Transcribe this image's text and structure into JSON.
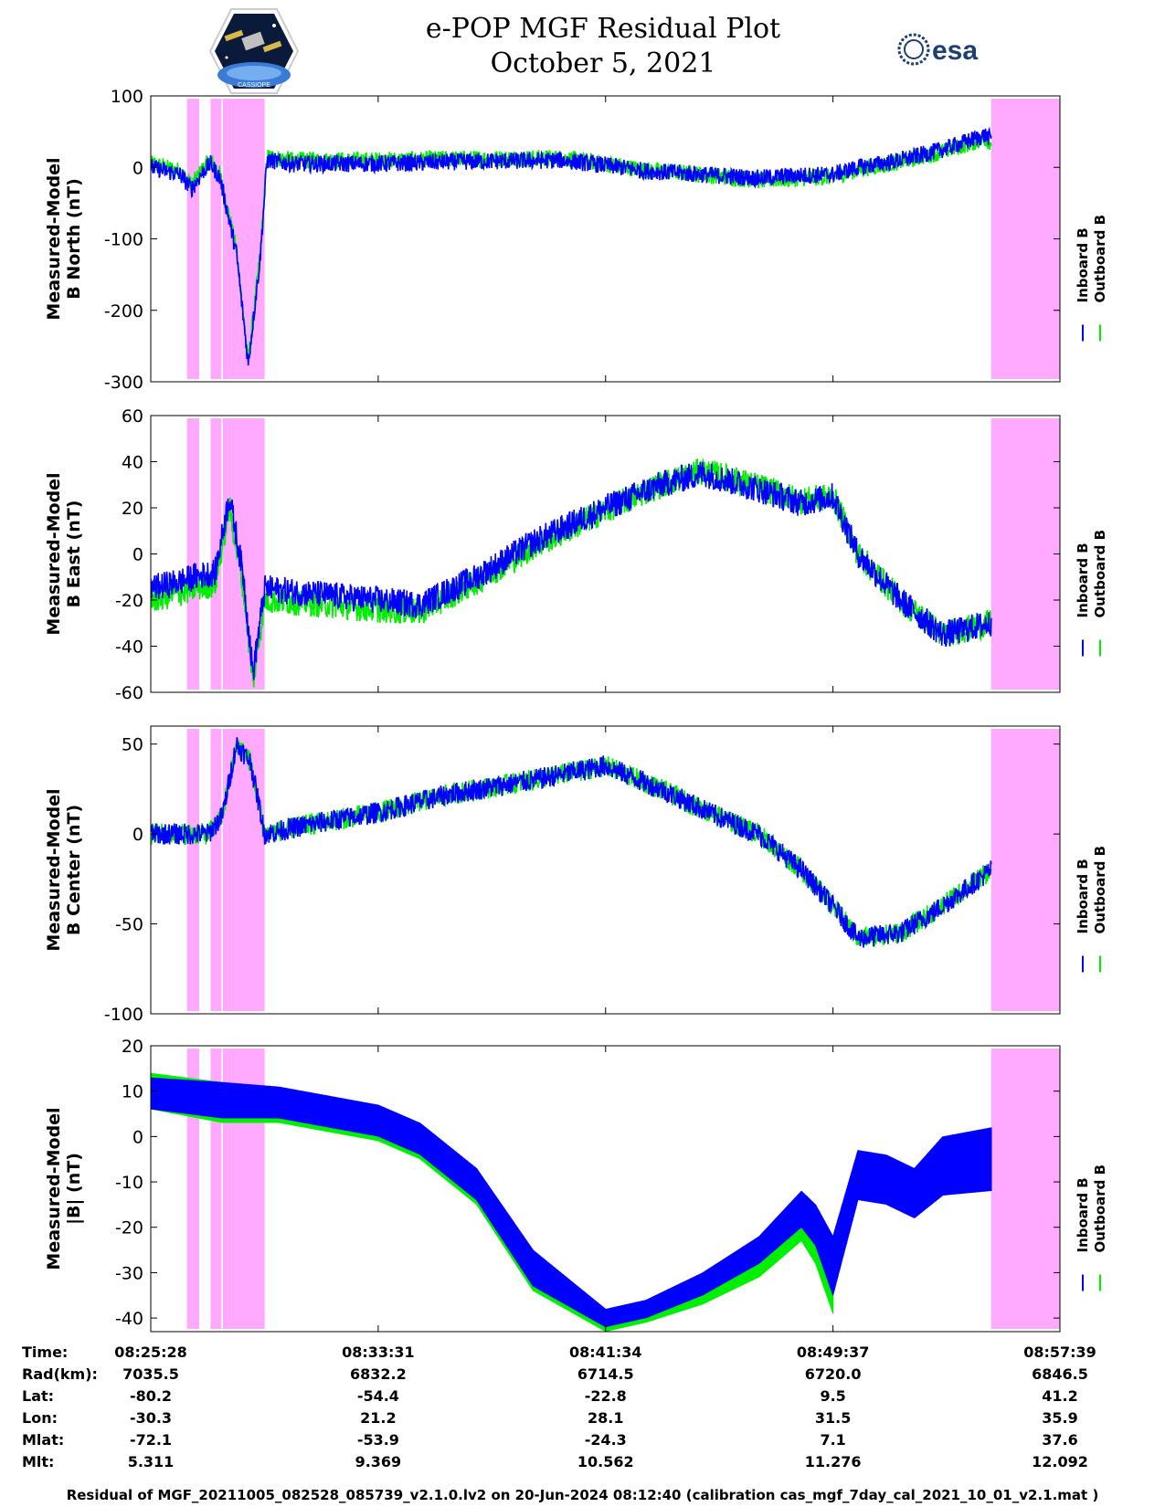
{
  "title": "e-POP MGF Residual Plot",
  "subtitle": "October 5, 2021",
  "logos": {
    "left": "cassiope-mission-patch",
    "left_caption": "CASSIOPE",
    "right": "esa"
  },
  "colors": {
    "inboard": "#0000ff",
    "outboard": "#00ee00",
    "shade": "#ffaaff"
  },
  "legend": {
    "inboard": "Inboard B",
    "outboard": "Outboard B"
  },
  "time_axis": {
    "start": "08:25:28",
    "end": "08:57:39",
    "ticks": [
      "08:25:28",
      "08:33:31",
      "08:41:34",
      "08:49:37",
      "08:57:39"
    ],
    "data_end_time": "08:55:13",
    "shaded_intervals": [
      [
        "08:26:45",
        "08:27:11"
      ],
      [
        "08:27:35",
        "08:27:58"
      ],
      [
        "08:28:01",
        "08:29:30"
      ],
      [
        "08:55:13",
        "08:57:39"
      ]
    ]
  },
  "chart_data": [
    {
      "type": "line",
      "ylabel": [
        "Measured-Model",
        "B North (nT)"
      ],
      "ylim": [
        -300,
        100
      ],
      "yticks": [
        100,
        0,
        -100,
        -200,
        -300
      ],
      "noise": 12,
      "series": [
        {
          "name": "Inboard B",
          "x": [
            "08:25:28",
            "08:26:30",
            "08:26:55",
            "08:27:20",
            "08:27:35",
            "08:27:55",
            "08:28:30",
            "08:28:55",
            "08:29:20",
            "08:29:35",
            "08:30:30",
            "08:33:31",
            "08:36:30",
            "08:40:00",
            "08:41:34",
            "08:43:00",
            "08:45:00",
            "08:47:00",
            "08:48:00",
            "08:49:37",
            "08:50:30",
            "08:52:00",
            "08:53:30",
            "08:55:00",
            "08:55:13"
          ],
          "y": [
            0,
            -10,
            -30,
            -5,
            5,
            -15,
            -120,
            -275,
            -130,
            10,
            5,
            5,
            8,
            10,
            3,
            -5,
            -10,
            -15,
            -12,
            -10,
            0,
            10,
            25,
            45,
            40
          ]
        },
        {
          "name": "Outboard B",
          "x": [
            "08:25:28",
            "08:26:30",
            "08:26:55",
            "08:27:20",
            "08:27:35",
            "08:27:55",
            "08:28:30",
            "08:28:55",
            "08:29:20",
            "08:29:35",
            "08:30:30",
            "08:33:31",
            "08:36:30",
            "08:40:00",
            "08:41:34",
            "08:43:00",
            "08:45:00",
            "08:47:00",
            "08:48:00",
            "08:49:37",
            "08:50:30",
            "08:52:00",
            "08:53:30",
            "08:55:00",
            "08:55:13"
          ],
          "y": [
            5,
            -5,
            -25,
            0,
            10,
            -10,
            -115,
            -270,
            -125,
            15,
            10,
            10,
            12,
            13,
            5,
            -4,
            -10,
            -18,
            -16,
            -13,
            -3,
            8,
            22,
            40,
            35
          ]
        }
      ]
    },
    {
      "type": "line",
      "ylabel": [
        "Measured-Model",
        "B East (nT)"
      ],
      "ylim": [
        -60,
        60
      ],
      "yticks": [
        60,
        40,
        20,
        0,
        -20,
        -40,
        -60
      ],
      "noise": 6,
      "series": [
        {
          "name": "Inboard B",
          "x": [
            "08:25:28",
            "08:26:30",
            "08:27:00",
            "08:27:45",
            "08:28:15",
            "08:28:45",
            "08:29:05",
            "08:29:30",
            "08:31:00",
            "08:33:31",
            "08:35:00",
            "08:37:00",
            "08:39:00",
            "08:41:34",
            "08:43:30",
            "08:45:00",
            "08:47:00",
            "08:48:30",
            "08:49:37",
            "08:50:30",
            "08:52:00",
            "08:53:30",
            "08:55:13"
          ],
          "y": [
            -15,
            -12,
            -10,
            -8,
            25,
            -10,
            -52,
            -15,
            -17,
            -20,
            -22,
            -10,
            5,
            20,
            30,
            35,
            28,
            22,
            25,
            0,
            -20,
            -35,
            -30
          ]
        },
        {
          "name": "Outboard B",
          "x": [
            "08:25:28",
            "08:26:30",
            "08:27:00",
            "08:27:45",
            "08:28:15",
            "08:28:45",
            "08:29:05",
            "08:29:30",
            "08:31:00",
            "08:33:31",
            "08:35:00",
            "08:37:00",
            "08:39:00",
            "08:41:34",
            "08:43:30",
            "08:45:00",
            "08:47:00",
            "08:48:30",
            "08:49:37",
            "08:50:30",
            "08:52:00",
            "08:53:30",
            "08:55:13"
          ],
          "y": [
            -20,
            -17,
            -15,
            -13,
            20,
            -15,
            -56,
            -20,
            -21,
            -24,
            -25,
            -12,
            3,
            19,
            30,
            36,
            29,
            23,
            25,
            0,
            -20,
            -35,
            -30
          ]
        }
      ]
    },
    {
      "type": "line",
      "ylabel": [
        "Measured-Model",
        "B Center (nT)"
      ],
      "ylim": [
        -100,
        60
      ],
      "yticks": [
        50,
        0,
        -50,
        -100
      ],
      "noise": 6,
      "series": [
        {
          "name": "Inboard B",
          "x": [
            "08:25:28",
            "08:26:30",
            "08:27:30",
            "08:28:00",
            "08:28:30",
            "08:29:00",
            "08:29:30",
            "08:31:00",
            "08:33:31",
            "08:36:00",
            "08:39:00",
            "08:41:34",
            "08:43:30",
            "08:45:30",
            "08:47:00",
            "08:48:30",
            "08:49:37",
            "08:50:30",
            "08:52:00",
            "08:53:30",
            "08:55:13"
          ],
          "y": [
            0,
            0,
            0,
            10,
            50,
            40,
            0,
            5,
            12,
            22,
            30,
            38,
            25,
            10,
            0,
            -20,
            -40,
            -58,
            -55,
            -40,
            -20
          ]
        },
        {
          "name": "Outboard B",
          "x": [
            "08:25:28",
            "08:26:30",
            "08:27:30",
            "08:28:00",
            "08:28:30",
            "08:29:00",
            "08:29:30",
            "08:31:00",
            "08:33:31",
            "08:36:00",
            "08:39:00",
            "08:41:34",
            "08:43:30",
            "08:45:30",
            "08:47:00",
            "08:48:30",
            "08:49:37",
            "08:50:30",
            "08:52:00",
            "08:53:30",
            "08:55:13"
          ],
          "y": [
            0,
            0,
            0,
            10,
            50,
            40,
            0,
            5,
            12,
            22,
            30,
            38,
            25,
            10,
            0,
            -20,
            -40,
            -58,
            -55,
            -40,
            -20
          ]
        }
      ]
    },
    {
      "type": "area",
      "ylabel": [
        "Measured-Model",
        "|B| (nT)"
      ],
      "ylim": [
        -43,
        20
      ],
      "yticks": [
        20,
        10,
        0,
        -10,
        -20,
        -30,
        -40
      ],
      "series": [
        {
          "name": "Inboard B",
          "x": [
            "08:25:28",
            "08:28:00",
            "08:30:00",
            "08:33:31",
            "08:35:00",
            "08:37:00",
            "08:39:00",
            "08:41:34",
            "08:43:00",
            "08:45:00",
            "08:47:00",
            "08:48:30",
            "08:49:00",
            "08:49:37",
            "08:50:30",
            "08:51:30",
            "08:52:30",
            "08:53:30",
            "08:55:13"
          ],
          "upper": [
            13,
            12,
            11,
            7,
            3,
            -7,
            -25,
            -38,
            -36,
            -30,
            -22,
            -12,
            -15,
            -22,
            -3,
            -4,
            -7,
            0,
            2
          ],
          "lower": [
            6,
            4,
            4,
            0,
            -4,
            -14,
            -33,
            -42,
            -40,
            -35,
            -28,
            -20,
            -24,
            -35,
            -14,
            -15,
            -18,
            -13,
            -12
          ]
        },
        {
          "name": "Outboard B",
          "x": [
            "08:25:28",
            "08:28:00",
            "08:30:00",
            "08:33:31",
            "08:35:00",
            "08:37:00",
            "08:39:00",
            "08:41:34",
            "08:43:00",
            "08:45:00",
            "08:47:00",
            "08:48:30",
            "08:49:00",
            "08:49:37"
          ],
          "upper": [
            14,
            12,
            10,
            6,
            2,
            -8,
            -26,
            -38,
            -37,
            -32,
            -24,
            -18,
            -22,
            -30
          ],
          "lower": [
            6,
            3,
            3,
            -1,
            -5,
            -15,
            -34,
            -43,
            -41,
            -37,
            -31,
            -23,
            -28,
            -39
          ]
        }
      ]
    }
  ],
  "ephemeris": {
    "labels": [
      "Time:",
      "Rad(km):",
      "Lat:",
      "Lon:",
      "Mlat:",
      "Mlt:"
    ],
    "columns": [
      [
        "08:25:28",
        "7035.5",
        "-80.2",
        "-30.3",
        "-72.1",
        "5.311"
      ],
      [
        "08:33:31",
        "6832.2",
        "-54.4",
        "21.2",
        "-53.9",
        "9.369"
      ],
      [
        "08:41:34",
        "6714.5",
        "-22.8",
        "28.1",
        "-24.3",
        "10.562"
      ],
      [
        "08:49:37",
        "6720.0",
        "9.5",
        "31.5",
        "7.1",
        "11.276"
      ],
      [
        "08:57:39",
        "6846.5",
        "41.2",
        "35.9",
        "37.6",
        "12.092"
      ]
    ]
  },
  "footer": "Residual of MGF_20211005_082528_085739_v2.1.0.lv2 on 20-Jun-2024 08:12:40 (calibration cas_mgf_7day_cal_2021_10_01_v2.1.mat )"
}
